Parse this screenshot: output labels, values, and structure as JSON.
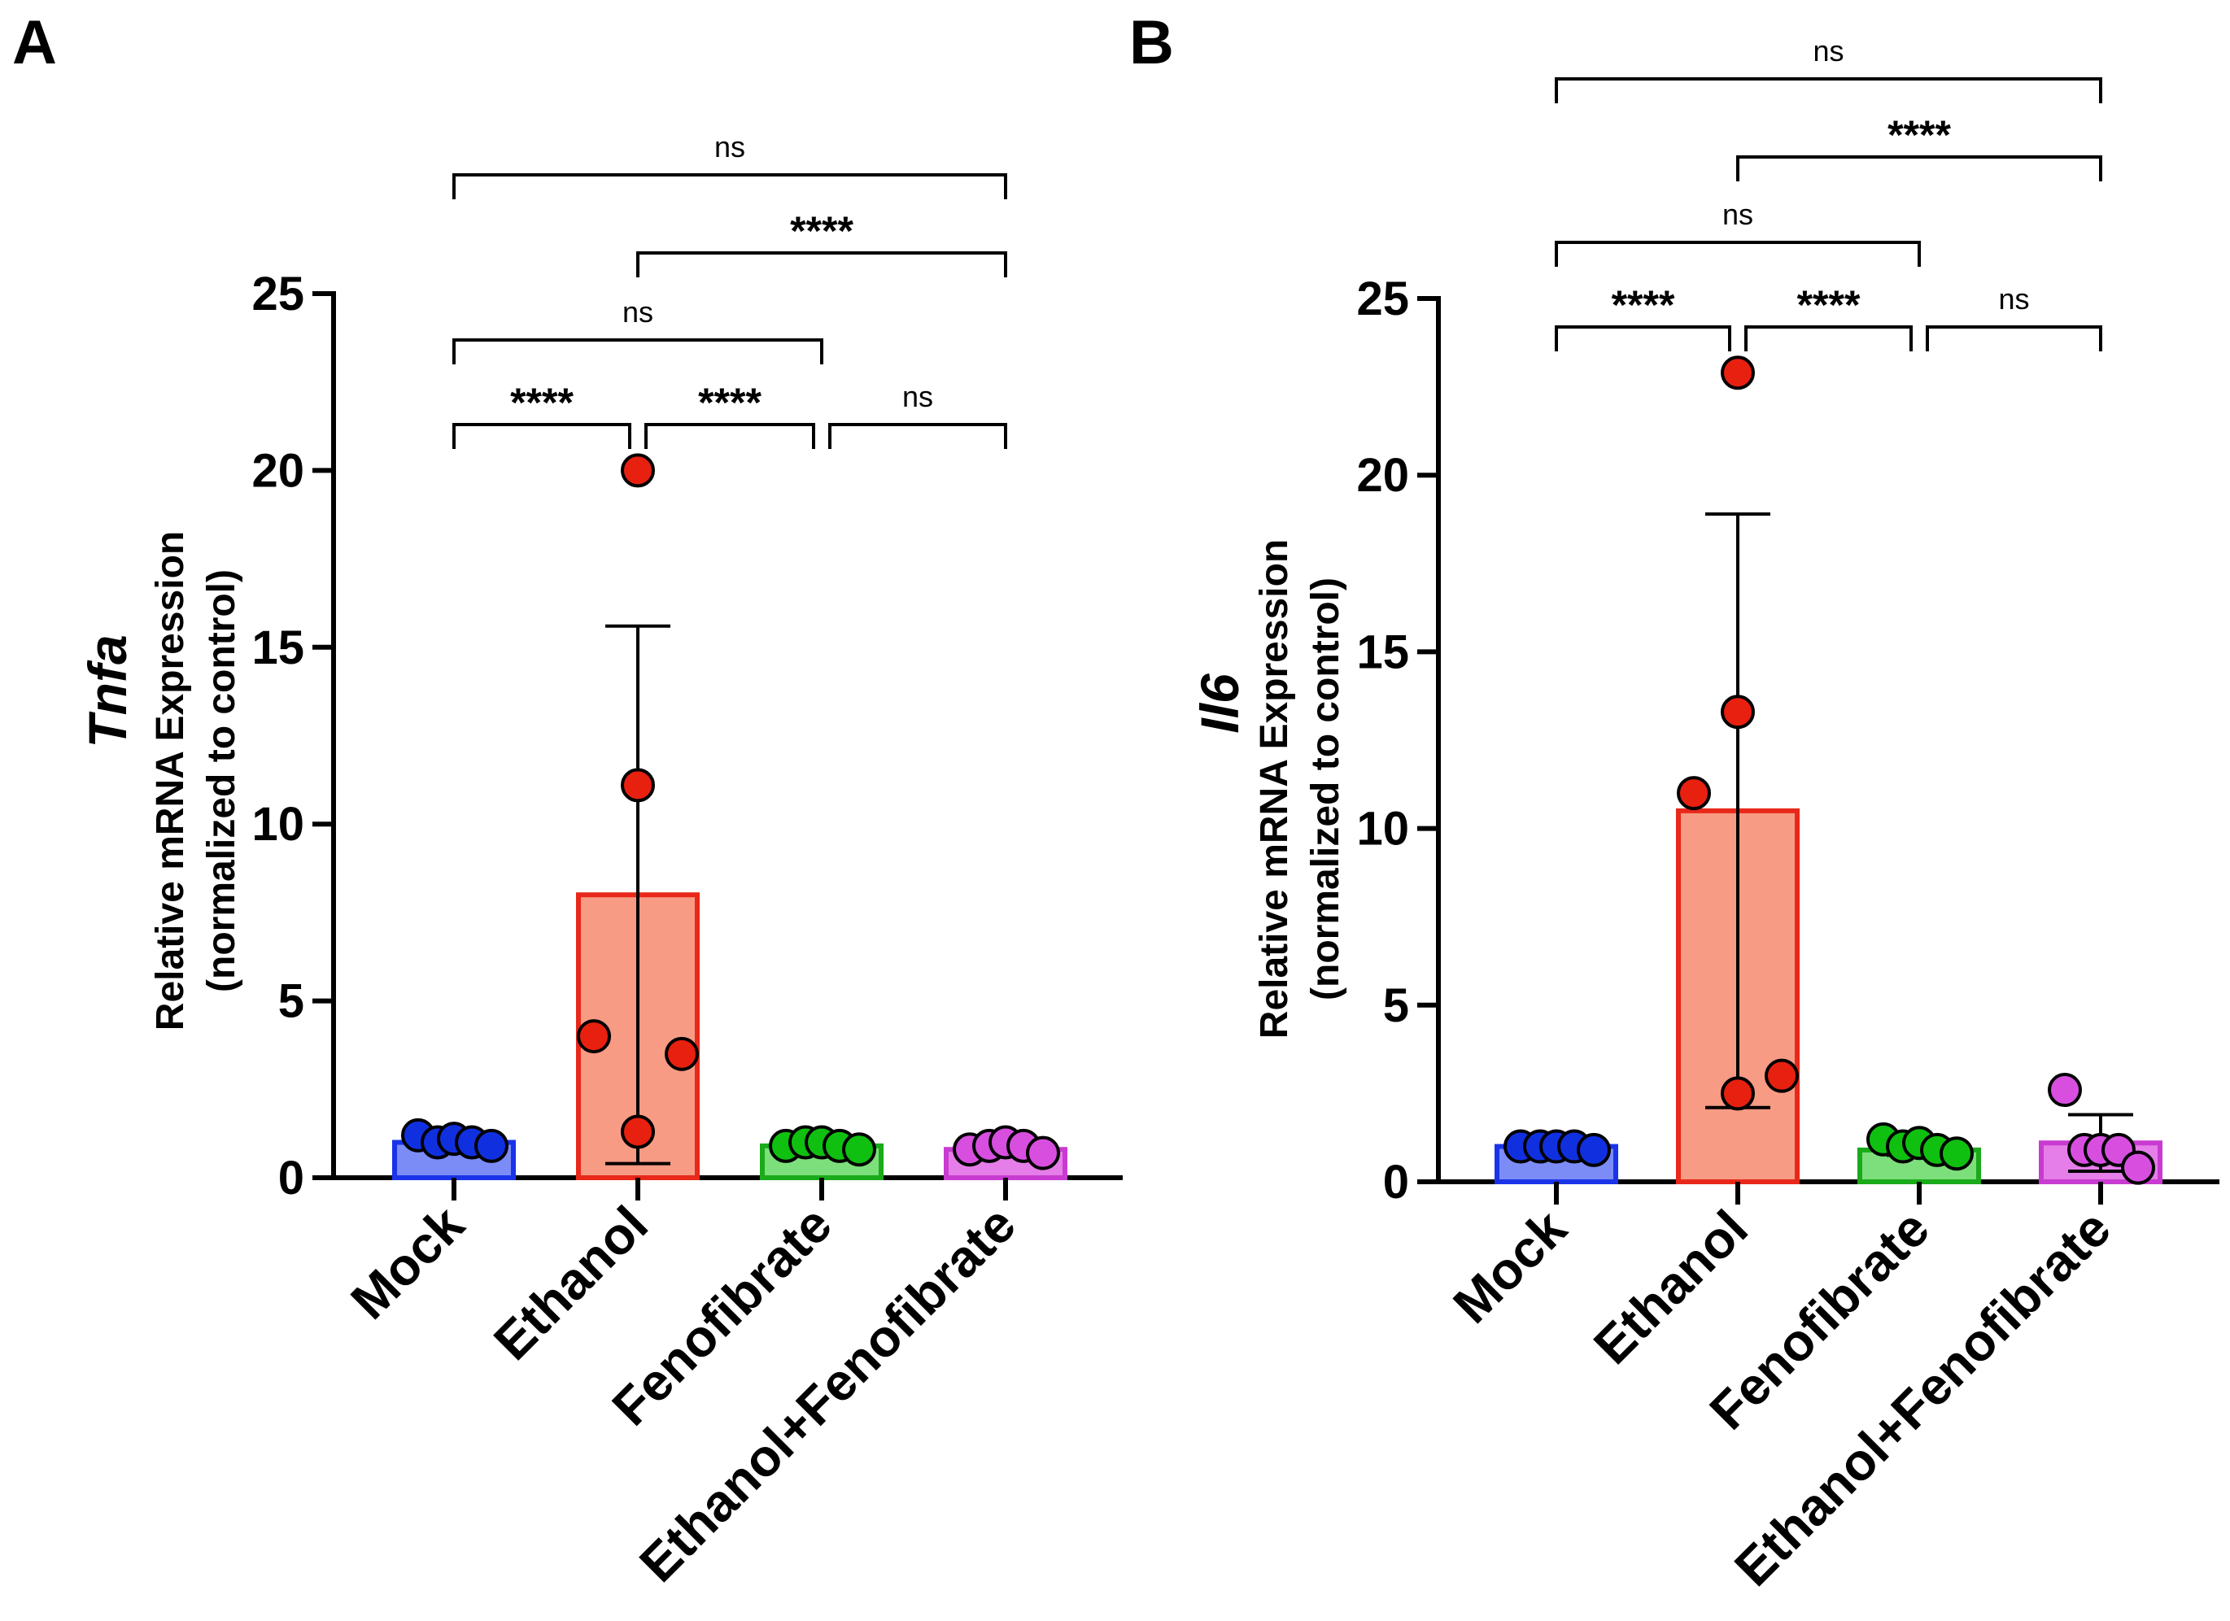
{
  "chart_data": [
    {
      "panel": "A",
      "type": "bar",
      "ylabel_gene": "Tnfa",
      "ylabel_line1": "Relative mRNA Expression",
      "ylabel_line2": "(normalized to control)",
      "ylim": [
        0,
        25
      ],
      "yticks": [
        "0",
        "5",
        "10",
        "15",
        "20",
        "25"
      ],
      "categories": [
        "Mock",
        "Ethanol",
        "Fenofibrate",
        "Ethanol+Fenofibrate"
      ],
      "values": [
        1.0,
        8.0,
        0.9,
        0.8
      ],
      "errors": [
        0.2,
        7.6,
        0.1,
        0.15
      ],
      "colors": {
        "fill": [
          "#7b8cf7",
          "#f79b84",
          "#7cdf7c",
          "#e57ee8"
        ],
        "stroke": [
          "#1a33e8",
          "#e8281a",
          "#1aaa1a",
          "#c83bd0"
        ],
        "dots": [
          "#1030e0",
          "#e82010",
          "#10c010",
          "#d84fe0"
        ]
      },
      "points": [
        [
          1.2,
          1.0,
          1.1,
          1.0,
          0.9
        ],
        [
          20.0,
          11.1,
          4.0,
          3.5,
          1.3
        ],
        [
          0.9,
          1.0,
          1.0,
          0.9,
          0.8
        ],
        [
          0.8,
          0.9,
          1.0,
          0.9,
          0.7
        ]
      ],
      "significance": [
        {
          "from": 0,
          "to": 3,
          "label": "ns"
        },
        {
          "from": 1,
          "to": 3,
          "label": "****"
        },
        {
          "from": 0,
          "to": 2,
          "label": "ns"
        },
        {
          "from": 0,
          "to": 1,
          "label": "****"
        },
        {
          "from": 1,
          "to": 2,
          "label": "****"
        },
        {
          "from": 2,
          "to": 3,
          "label": "ns"
        }
      ]
    },
    {
      "panel": "B",
      "type": "bar",
      "ylabel_gene": "Il6",
      "ylabel_line1": "Relative mRNA Expression",
      "ylabel_line2": "(normalized to control)",
      "ylim": [
        0,
        25
      ],
      "yticks": [
        "0",
        "5",
        "10",
        "15",
        "20",
        "25"
      ],
      "categories": [
        "Mock",
        "Ethanol",
        "Fenofibrate",
        "Ethanol+Fenofibrate"
      ],
      "values": [
        1.0,
        10.5,
        0.9,
        1.1
      ],
      "errors": [
        0.1,
        8.4,
        0.15,
        0.8
      ],
      "colors": {
        "fill": [
          "#7b8cf7",
          "#f79b84",
          "#7cdf7c",
          "#e57ee8"
        ],
        "stroke": [
          "#1a33e8",
          "#e8281a",
          "#1aaa1a",
          "#c83bd0"
        ],
        "dots": [
          "#1030e0",
          "#e82010",
          "#10c010",
          "#d84fe0"
        ]
      },
      "points": [
        [
          1.0,
          1.0,
          1.0,
          1.0,
          0.9
        ],
        [
          22.9,
          13.3,
          11.0,
          3.0,
          2.5
        ],
        [
          1.2,
          1.0,
          1.1,
          0.9,
          0.8
        ],
        [
          2.6,
          0.9,
          0.9,
          0.9,
          0.4
        ]
      ],
      "significance": [
        {
          "from": 0,
          "to": 3,
          "label": "ns"
        },
        {
          "from": 1,
          "to": 3,
          "label": "****"
        },
        {
          "from": 0,
          "to": 2,
          "label": "ns"
        },
        {
          "from": 0,
          "to": 1,
          "label": "****"
        },
        {
          "from": 1,
          "to": 2,
          "label": "****"
        },
        {
          "from": 2,
          "to": 3,
          "label": "ns"
        }
      ]
    }
  ]
}
